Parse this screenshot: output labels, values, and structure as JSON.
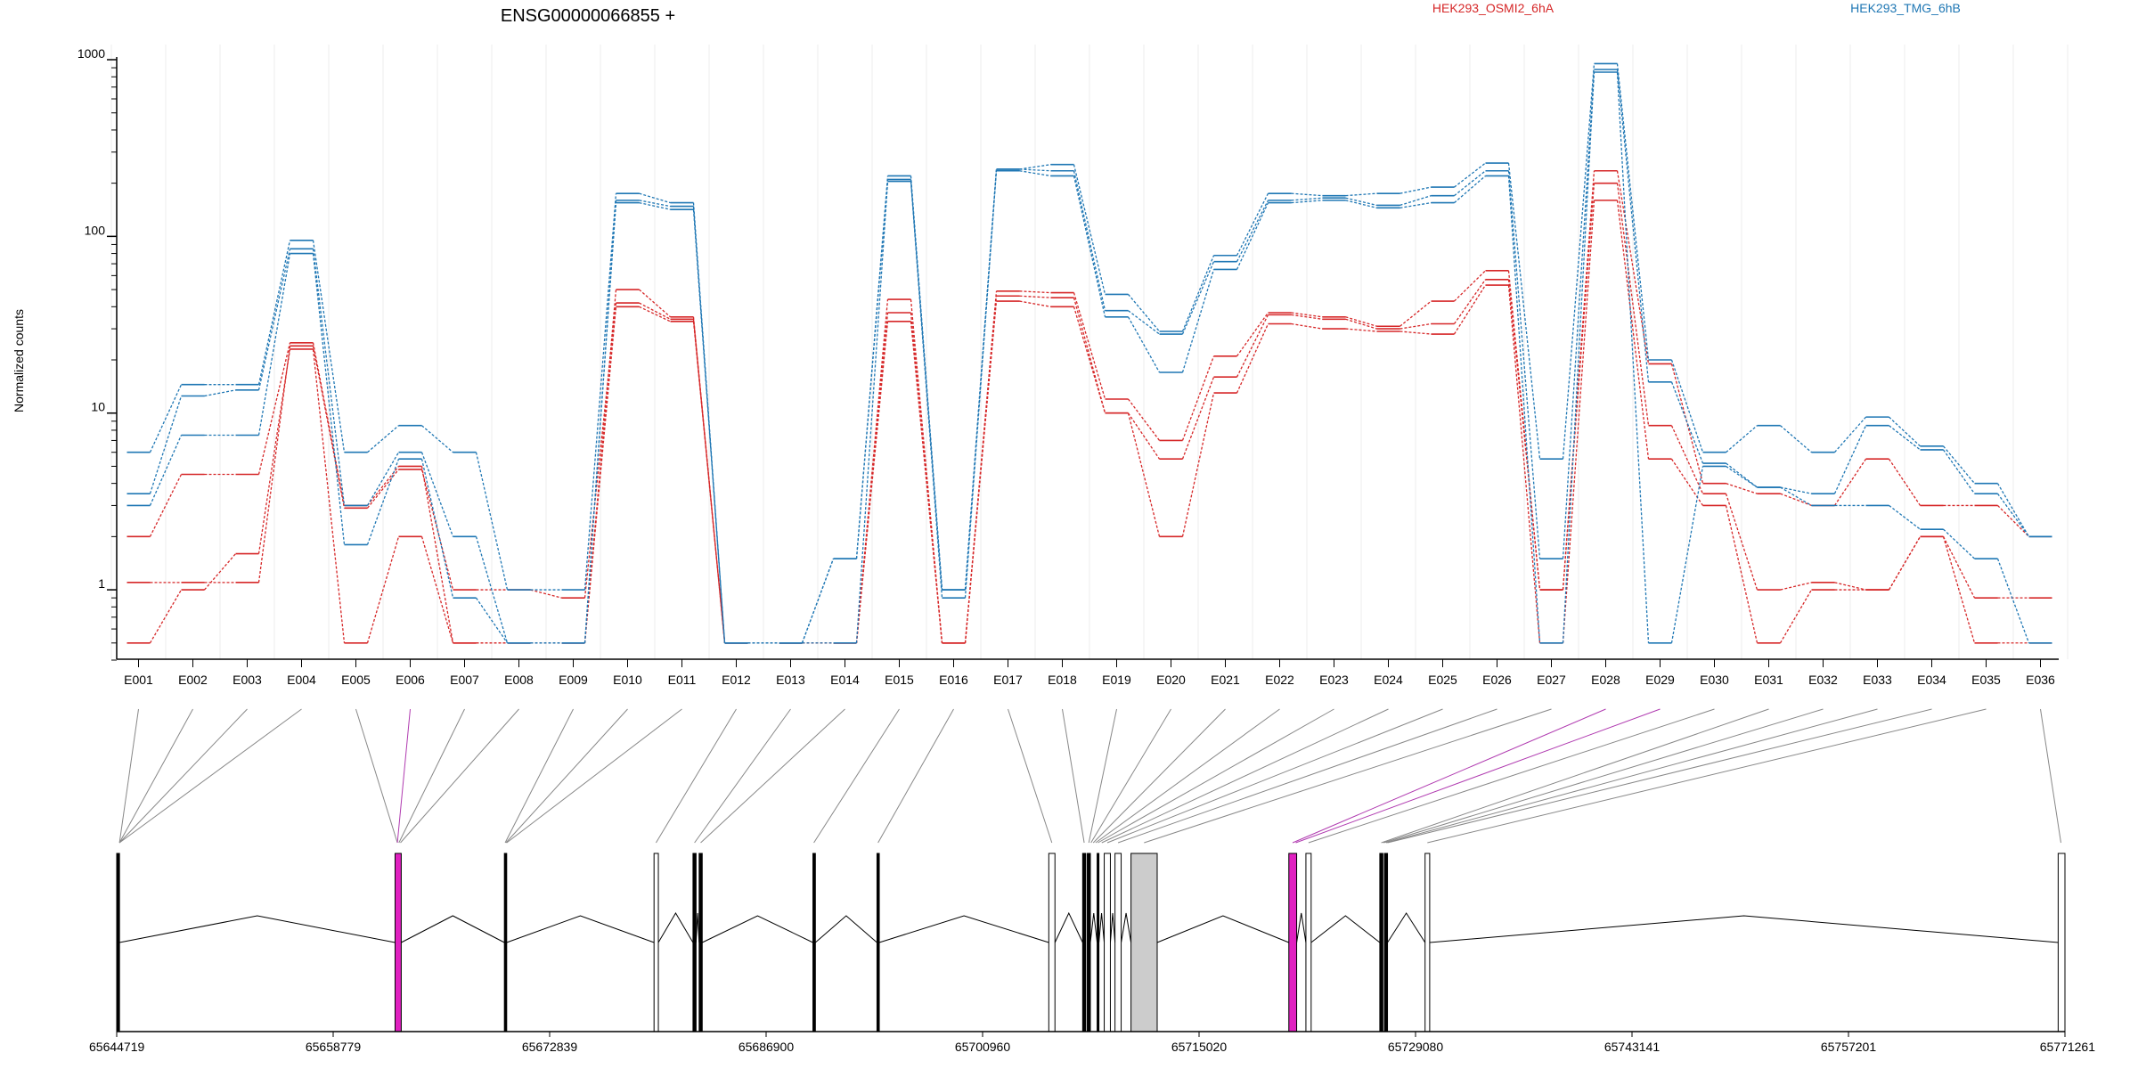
{
  "chart_data": {
    "type": "line",
    "title": "ENSG00000066855 +",
    "ylabel": "Normalized counts",
    "y_scale": "log",
    "ylim": [
      0.4,
      1000
    ],
    "y_ticks": [
      1,
      10,
      100,
      1000
    ],
    "y_tick_labels": [
      "1",
      "10",
      "100",
      "1000"
    ],
    "categories": [
      "E001",
      "E002",
      "E003",
      "E004",
      "E005",
      "E006",
      "E007",
      "E008",
      "E009",
      "E010",
      "E011",
      "E012",
      "E013",
      "E014",
      "E015",
      "E016",
      "E017",
      "E018",
      "E019",
      "E020",
      "E021",
      "E022",
      "E023",
      "E024",
      "E025",
      "E026",
      "E027",
      "E028",
      "E029",
      "E030",
      "E031",
      "E032",
      "E033",
      "E034",
      "E035",
      "E036"
    ],
    "legend": [
      {
        "name": "HEK293_OSMI2_6hA",
        "color": "#d62728"
      },
      {
        "name": "HEK293_TMG_6hB",
        "color": "#1f77b4"
      }
    ],
    "series": [
      {
        "group": 0,
        "values": [
          0.5,
          1.0,
          1.6,
          23,
          0.5,
          2.0,
          0.5,
          0.5,
          0.5,
          40,
          33,
          0.5,
          0.5,
          0.5,
          33,
          0.5,
          43,
          40,
          10,
          2.0,
          13,
          32,
          30,
          29,
          28,
          53,
          0.5,
          160,
          5.5,
          3.0,
          0.5,
          1.0,
          1.0,
          2.0,
          0.5,
          0.5
        ]
      },
      {
        "group": 0,
        "values": [
          1.1,
          1.1,
          1.1,
          24,
          2.9,
          4.8,
          1.0,
          1.0,
          0.9,
          42,
          34,
          0.5,
          0.5,
          0.5,
          37,
          0.5,
          46,
          45,
          10,
          5.5,
          16,
          36,
          34,
          30,
          32,
          57,
          1.0,
          200,
          8.5,
          3.5,
          1.0,
          1.1,
          1.0,
          2.0,
          0.9,
          0.9
        ]
      },
      {
        "group": 0,
        "values": [
          2.0,
          4.5,
          4.5,
          25,
          3.0,
          5.0,
          0.5,
          0.5,
          0.5,
          50,
          35,
          0.5,
          0.5,
          0.5,
          44,
          0.5,
          49,
          48,
          12,
          7.0,
          21,
          37,
          35,
          31,
          43,
          64,
          1.0,
          235,
          19,
          4.0,
          3.5,
          3.0,
          5.5,
          3.0,
          3.0,
          2.0
        ]
      },
      {
        "group": 1,
        "values": [
          3.0,
          7.5,
          7.5,
          80,
          1.8,
          5.5,
          0.9,
          0.5,
          0.5,
          155,
          142,
          0.5,
          0.5,
          0.5,
          205,
          0.9,
          235,
          220,
          35,
          17,
          65,
          155,
          160,
          145,
          155,
          220,
          0.5,
          850,
          0.5,
          5.0,
          3.8,
          3.0,
          3.0,
          2.2,
          1.5,
          0.5
        ]
      },
      {
        "group": 1,
        "values": [
          3.5,
          12.5,
          13.5,
          85,
          3.0,
          6.0,
          2.0,
          0.5,
          0.5,
          160,
          148,
          0.5,
          0.5,
          1.5,
          210,
          1.0,
          240,
          235,
          38,
          28,
          72,
          160,
          165,
          150,
          170,
          235,
          1.5,
          880,
          15,
          5.2,
          3.8,
          3.5,
          8.5,
          6.2,
          3.5,
          2.0
        ]
      },
      {
        "group": 1,
        "values": [
          6.0,
          14.5,
          14.5,
          95,
          6.0,
          8.5,
          6.0,
          1.0,
          1.0,
          175,
          155,
          0.5,
          0.5,
          1.5,
          220,
          1.0,
          240,
          255,
          47,
          29,
          78,
          175,
          170,
          175,
          190,
          260,
          5.5,
          950,
          20,
          6.0,
          8.5,
          6.0,
          9.5,
          6.5,
          4.0,
          2.0
        ]
      }
    ]
  },
  "gene_model": {
    "coordinate_ticks": [
      "65644719",
      "65658779",
      "65672839",
      "65686900",
      "65700960",
      "65715020",
      "65729080",
      "65743141",
      "65757201",
      "65771261"
    ],
    "genome_range": [
      65644719,
      65771261
    ],
    "exons": [
      {
        "start": 65644719,
        "end": 65644900,
        "style": "black"
      },
      {
        "start": 65662800,
        "end": 65663200,
        "style": "magenta"
      },
      {
        "start": 65669900,
        "end": 65670050,
        "style": "black"
      },
      {
        "start": 65679620,
        "end": 65679900,
        "style": "white"
      },
      {
        "start": 65682150,
        "end": 65682350,
        "style": "black"
      },
      {
        "start": 65682550,
        "end": 65682750,
        "style": "black"
      },
      {
        "start": 65689940,
        "end": 65690100,
        "style": "black"
      },
      {
        "start": 65694100,
        "end": 65694250,
        "style": "black"
      },
      {
        "start": 65705260,
        "end": 65705660,
        "style": "white"
      },
      {
        "start": 65707460,
        "end": 65707660,
        "style": "black"
      },
      {
        "start": 65707760,
        "end": 65707960,
        "style": "black"
      },
      {
        "start": 65708400,
        "end": 65708500,
        "style": "black"
      },
      {
        "start": 65708860,
        "end": 65709260,
        "style": "white"
      },
      {
        "start": 65709560,
        "end": 65709960,
        "style": "white"
      },
      {
        "start": 65710600,
        "end": 65712300,
        "style": "gray"
      },
      {
        "start": 65720850,
        "end": 65721360,
        "style": "magenta"
      },
      {
        "start": 65721960,
        "end": 65722300,
        "style": "white"
      },
      {
        "start": 65726760,
        "end": 65726960,
        "style": "black"
      },
      {
        "start": 65727060,
        "end": 65727260,
        "style": "black"
      },
      {
        "start": 65729700,
        "end": 65730000,
        "style": "white"
      },
      {
        "start": 65770820,
        "end": 65771261,
        "style": "white"
      }
    ],
    "connectors": [
      {
        "exon": "E001",
        "x": 65644900,
        "color": "#888888"
      },
      {
        "exon": "E002",
        "x": 65644900,
        "color": "#888888"
      },
      {
        "exon": "E003",
        "x": 65644900,
        "color": "#888888"
      },
      {
        "exon": "E004",
        "x": 65644900,
        "color": "#888888"
      },
      {
        "exon": "E005",
        "x": 65662950,
        "color": "#888888"
      },
      {
        "exon": "E006",
        "x": 65662950,
        "color": "#b03bb0"
      },
      {
        "exon": "E007",
        "x": 65663050,
        "color": "#888888"
      },
      {
        "exon": "E008",
        "x": 65663150,
        "color": "#888888"
      },
      {
        "exon": "E009",
        "x": 65669950,
        "color": "#888888"
      },
      {
        "exon": "E010",
        "x": 65670000,
        "color": "#888888"
      },
      {
        "exon": "E011",
        "x": 65670050,
        "color": "#888888"
      },
      {
        "exon": "E012",
        "x": 65679750,
        "color": "#888888"
      },
      {
        "exon": "E013",
        "x": 65682250,
        "color": "#888888"
      },
      {
        "exon": "E014",
        "x": 65682650,
        "color": "#888888"
      },
      {
        "exon": "E015",
        "x": 65690000,
        "color": "#888888"
      },
      {
        "exon": "E016",
        "x": 65694170,
        "color": "#888888"
      },
      {
        "exon": "E017",
        "x": 65705460,
        "color": "#888888"
      },
      {
        "exon": "E018",
        "x": 65707560,
        "color": "#888888"
      },
      {
        "exon": "E019",
        "x": 65707860,
        "color": "#888888"
      },
      {
        "exon": "E020",
        "x": 65708000,
        "color": "#888888"
      },
      {
        "exon": "E021",
        "x": 65708150,
        "color": "#888888"
      },
      {
        "exon": "E022",
        "x": 65708300,
        "color": "#888888"
      },
      {
        "exon": "E023",
        "x": 65708450,
        "color": "#888888"
      },
      {
        "exon": "E024",
        "x": 65708700,
        "color": "#888888"
      },
      {
        "exon": "E025",
        "x": 65709060,
        "color": "#888888"
      },
      {
        "exon": "E026",
        "x": 65709760,
        "color": "#888888"
      },
      {
        "exon": "E027",
        "x": 65711450,
        "color": "#888888"
      },
      {
        "exon": "E028",
        "x": 65721100,
        "color": "#b03bb0"
      },
      {
        "exon": "E029",
        "x": 65721300,
        "color": "#b03bb0"
      },
      {
        "exon": "E030",
        "x": 65722130,
        "color": "#888888"
      },
      {
        "exon": "E031",
        "x": 65726860,
        "color": "#888888"
      },
      {
        "exon": "E032",
        "x": 65727000,
        "color": "#888888"
      },
      {
        "exon": "E033",
        "x": 65727160,
        "color": "#888888"
      },
      {
        "exon": "E034",
        "x": 65727260,
        "color": "#888888"
      },
      {
        "exon": "E035",
        "x": 65729850,
        "color": "#888888"
      },
      {
        "exon": "E036",
        "x": 65771000,
        "color": "#888888"
      }
    ]
  }
}
